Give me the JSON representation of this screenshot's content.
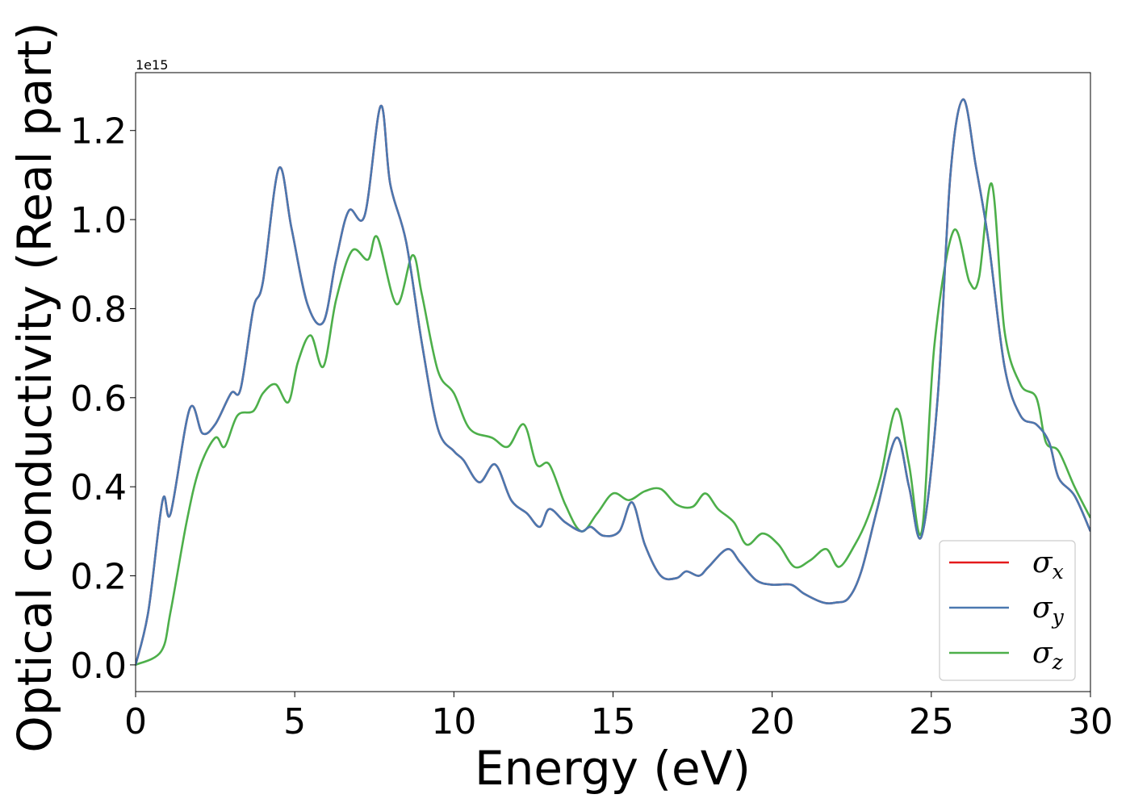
{
  "chart_data": {
    "type": "line",
    "title": "",
    "xlabel": "Energy (eV)",
    "ylabel": "Optical conductivity (Real part)",
    "offset_text": "1e15",
    "xlim": [
      0,
      30
    ],
    "ylim": [
      -0.06,
      1.33
    ],
    "y_scale_factor": "1e15",
    "xticks": [
      "0",
      "5",
      "10",
      "15",
      "20",
      "25",
      "30"
    ],
    "yticks": [
      "0.0",
      "0.2",
      "0.4",
      "0.6",
      "0.8",
      "1.0",
      "1.2"
    ],
    "grid": false,
    "legend_position": "lower-right",
    "series": [
      {
        "name": "σ_x",
        "symbol": "σ",
        "subscript": "x",
        "color": "#e41a1c",
        "x": [
          0,
          0.4,
          0.85,
          1.1,
          1.7,
          2.1,
          2.5,
          3.0,
          3.3,
          3.7,
          4.0,
          4.5,
          4.9,
          5.4,
          5.9,
          6.3,
          6.7,
          7.2,
          7.7,
          8.0,
          8.5,
          9.0,
          9.5,
          10.0,
          10.3,
          10.8,
          11.3,
          11.8,
          12.3,
          12.7,
          13.0,
          13.5,
          14.0,
          14.3,
          14.7,
          15.2,
          15.6,
          16.0,
          16.5,
          17.0,
          17.3,
          17.7,
          18.0,
          18.6,
          19.0,
          19.5,
          20.0,
          20.6,
          21.0,
          21.6,
          22.0,
          22.4,
          22.8,
          23.3,
          23.9,
          24.3,
          24.7,
          25.2,
          25.6,
          26.0,
          26.4,
          26.8,
          27.3,
          27.8,
          28.3,
          28.7,
          29.0,
          29.5,
          30.0
        ],
        "values": [
          0.0,
          0.12,
          0.37,
          0.34,
          0.575,
          0.52,
          0.54,
          0.61,
          0.62,
          0.8,
          0.86,
          1.115,
          0.98,
          0.81,
          0.77,
          0.91,
          1.02,
          1.01,
          1.255,
          1.08,
          0.95,
          0.72,
          0.53,
          0.48,
          0.46,
          0.41,
          0.45,
          0.37,
          0.34,
          0.31,
          0.35,
          0.32,
          0.3,
          0.31,
          0.29,
          0.3,
          0.365,
          0.27,
          0.2,
          0.195,
          0.21,
          0.2,
          0.22,
          0.26,
          0.23,
          0.19,
          0.18,
          0.18,
          0.16,
          0.14,
          0.14,
          0.15,
          0.21,
          0.35,
          0.51,
          0.4,
          0.29,
          0.6,
          1.1,
          1.27,
          1.12,
          0.95,
          0.67,
          0.56,
          0.54,
          0.5,
          0.42,
          0.38,
          0.3
        ]
      },
      {
        "name": "σ_y",
        "symbol": "σ",
        "subscript": "y",
        "color": "#4a78b0",
        "x": [
          0,
          0.4,
          0.85,
          1.1,
          1.7,
          2.1,
          2.5,
          3.0,
          3.3,
          3.7,
          4.0,
          4.5,
          4.9,
          5.4,
          5.9,
          6.3,
          6.7,
          7.2,
          7.7,
          8.0,
          8.5,
          9.0,
          9.5,
          10.0,
          10.3,
          10.8,
          11.3,
          11.8,
          12.3,
          12.7,
          13.0,
          13.5,
          14.0,
          14.3,
          14.7,
          15.2,
          15.6,
          16.0,
          16.5,
          17.0,
          17.3,
          17.7,
          18.0,
          18.6,
          19.0,
          19.5,
          20.0,
          20.6,
          21.0,
          21.6,
          22.0,
          22.4,
          22.8,
          23.3,
          23.9,
          24.3,
          24.7,
          25.2,
          25.6,
          26.0,
          26.4,
          26.8,
          27.3,
          27.8,
          28.3,
          28.7,
          29.0,
          29.5,
          30.0
        ],
        "values": [
          0.0,
          0.12,
          0.37,
          0.34,
          0.575,
          0.52,
          0.54,
          0.61,
          0.62,
          0.8,
          0.86,
          1.115,
          0.98,
          0.81,
          0.77,
          0.91,
          1.02,
          1.01,
          1.255,
          1.08,
          0.95,
          0.72,
          0.53,
          0.48,
          0.46,
          0.41,
          0.45,
          0.37,
          0.34,
          0.31,
          0.35,
          0.32,
          0.3,
          0.31,
          0.29,
          0.3,
          0.365,
          0.27,
          0.2,
          0.195,
          0.21,
          0.2,
          0.22,
          0.26,
          0.23,
          0.19,
          0.18,
          0.18,
          0.16,
          0.14,
          0.14,
          0.15,
          0.21,
          0.35,
          0.51,
          0.4,
          0.29,
          0.6,
          1.1,
          1.27,
          1.12,
          0.95,
          0.67,
          0.56,
          0.54,
          0.5,
          0.42,
          0.38,
          0.3
        ]
      },
      {
        "name": "σ_z",
        "symbol": "σ",
        "subscript": "z",
        "color": "#4daf4a",
        "x": [
          0,
          0.8,
          1.1,
          1.6,
          2.0,
          2.5,
          2.8,
          3.2,
          3.7,
          4.0,
          4.4,
          4.8,
          5.1,
          5.5,
          5.9,
          6.3,
          6.8,
          7.3,
          7.6,
          8.2,
          8.7,
          9.0,
          9.5,
          10.0,
          10.5,
          11.2,
          11.7,
          12.2,
          12.6,
          13.0,
          13.5,
          14.0,
          14.5,
          15.0,
          15.5,
          16.0,
          16.5,
          17.0,
          17.5,
          17.9,
          18.3,
          18.8,
          19.2,
          19.7,
          20.2,
          20.7,
          21.2,
          21.7,
          22.1,
          22.6,
          23.0,
          23.4,
          23.9,
          24.3,
          24.7,
          25.1,
          25.7,
          26.2,
          26.5,
          26.9,
          27.3,
          27.8,
          28.3,
          28.6,
          29.0,
          29.5,
          30.0
        ],
        "values": [
          0.0,
          0.03,
          0.12,
          0.32,
          0.44,
          0.51,
          0.49,
          0.56,
          0.57,
          0.61,
          0.63,
          0.59,
          0.68,
          0.74,
          0.67,
          0.82,
          0.93,
          0.91,
          0.96,
          0.81,
          0.92,
          0.83,
          0.66,
          0.61,
          0.53,
          0.51,
          0.49,
          0.54,
          0.45,
          0.45,
          0.36,
          0.3,
          0.34,
          0.385,
          0.37,
          0.39,
          0.395,
          0.36,
          0.355,
          0.385,
          0.35,
          0.32,
          0.27,
          0.295,
          0.27,
          0.22,
          0.235,
          0.26,
          0.22,
          0.27,
          0.33,
          0.42,
          0.575,
          0.45,
          0.3,
          0.72,
          0.975,
          0.86,
          0.87,
          1.08,
          0.75,
          0.63,
          0.6,
          0.5,
          0.48,
          0.4,
          0.33
        ]
      }
    ]
  }
}
